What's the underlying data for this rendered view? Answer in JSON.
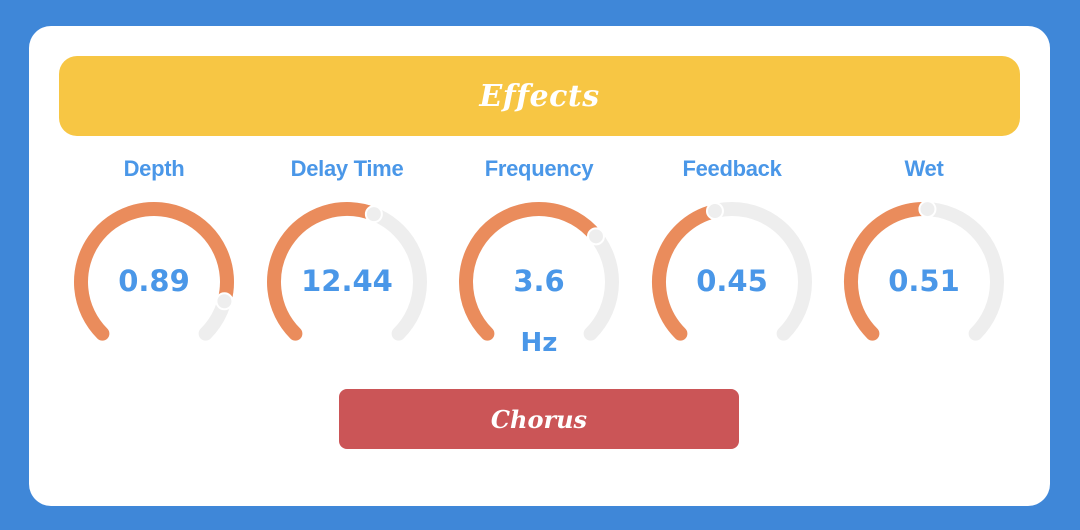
{
  "header": {
    "title": "Effects"
  },
  "colors": {
    "background": "#3f87d8",
    "header": "#f7c644",
    "accent_text": "#4a97e8",
    "arc_active": "#ea8c5c",
    "arc_track": "#eeeeee",
    "button": "#cb5557"
  },
  "knobs": [
    {
      "label": "Depth",
      "value": "0.89",
      "unit": "",
      "fraction": 0.89
    },
    {
      "label": "Delay Time",
      "value": "12.44",
      "unit": "",
      "fraction": 0.58
    },
    {
      "label": "Frequency",
      "value": "3.6",
      "unit": "Hz",
      "fraction": 0.69
    },
    {
      "label": "Feedback",
      "value": "0.45",
      "unit": "",
      "fraction": 0.45
    },
    {
      "label": "Wet",
      "value": "0.51",
      "unit": "",
      "fraction": 0.51
    }
  ],
  "chorus_button": {
    "label": "Chorus"
  }
}
